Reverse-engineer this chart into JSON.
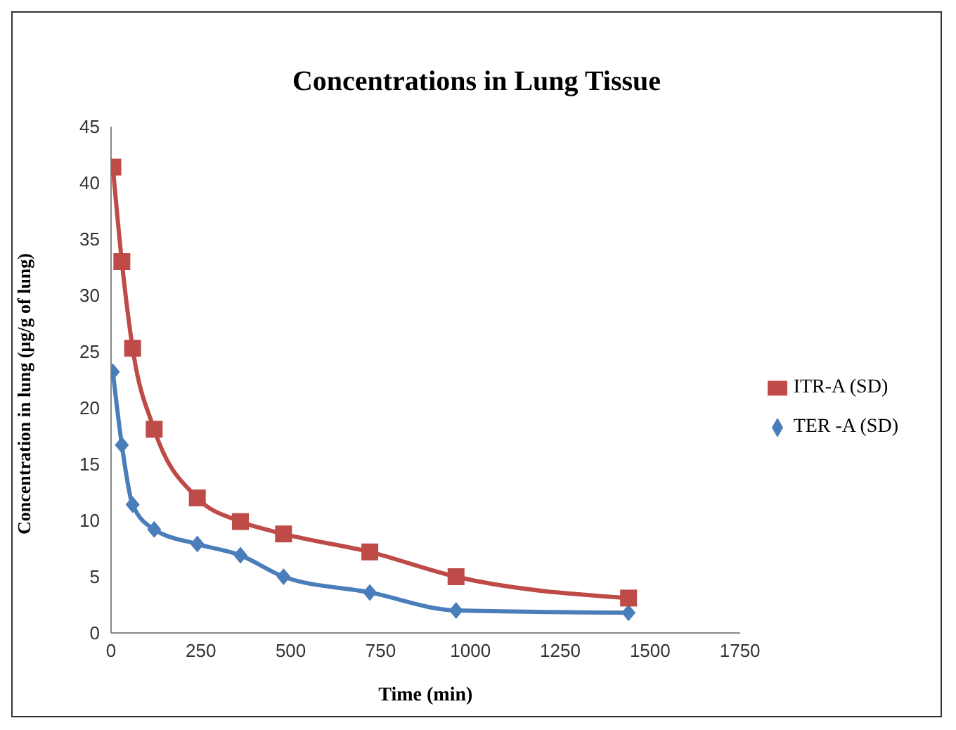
{
  "chart_data": {
    "type": "line",
    "title": "Concentrations in Lung Tissue",
    "xlabel": "Time (min)",
    "ylabel": "Concentration in lung (µg/g of lung)",
    "x": [
      5,
      30,
      60,
      120,
      240,
      360,
      480,
      720,
      960,
      1440
    ],
    "series": [
      {
        "name": "TER -A (SD)",
        "color": "#4a7ebb",
        "marker": "diamond",
        "values": [
          23.2,
          16.7,
          11.4,
          9.2,
          7.9,
          6.9,
          5.0,
          3.6,
          2.0,
          1.8
        ]
      },
      {
        "name": "ITR-A (SD)",
        "color": "#be4b48",
        "marker": "square",
        "values": [
          41.4,
          33.0,
          25.3,
          18.1,
          12.0,
          9.9,
          8.8,
          7.2,
          5.0,
          3.1
        ]
      }
    ],
    "xlim": [
      0,
      1750
    ],
    "xticks": [
      0,
      250,
      500,
      750,
      1000,
      1250,
      1500,
      1750
    ],
    "ylim": [
      0,
      45
    ],
    "yticks": [
      0,
      5,
      10,
      15,
      20,
      25,
      30,
      35,
      40,
      45
    ],
    "grid": false,
    "legend": "right",
    "line_style": "solid"
  }
}
